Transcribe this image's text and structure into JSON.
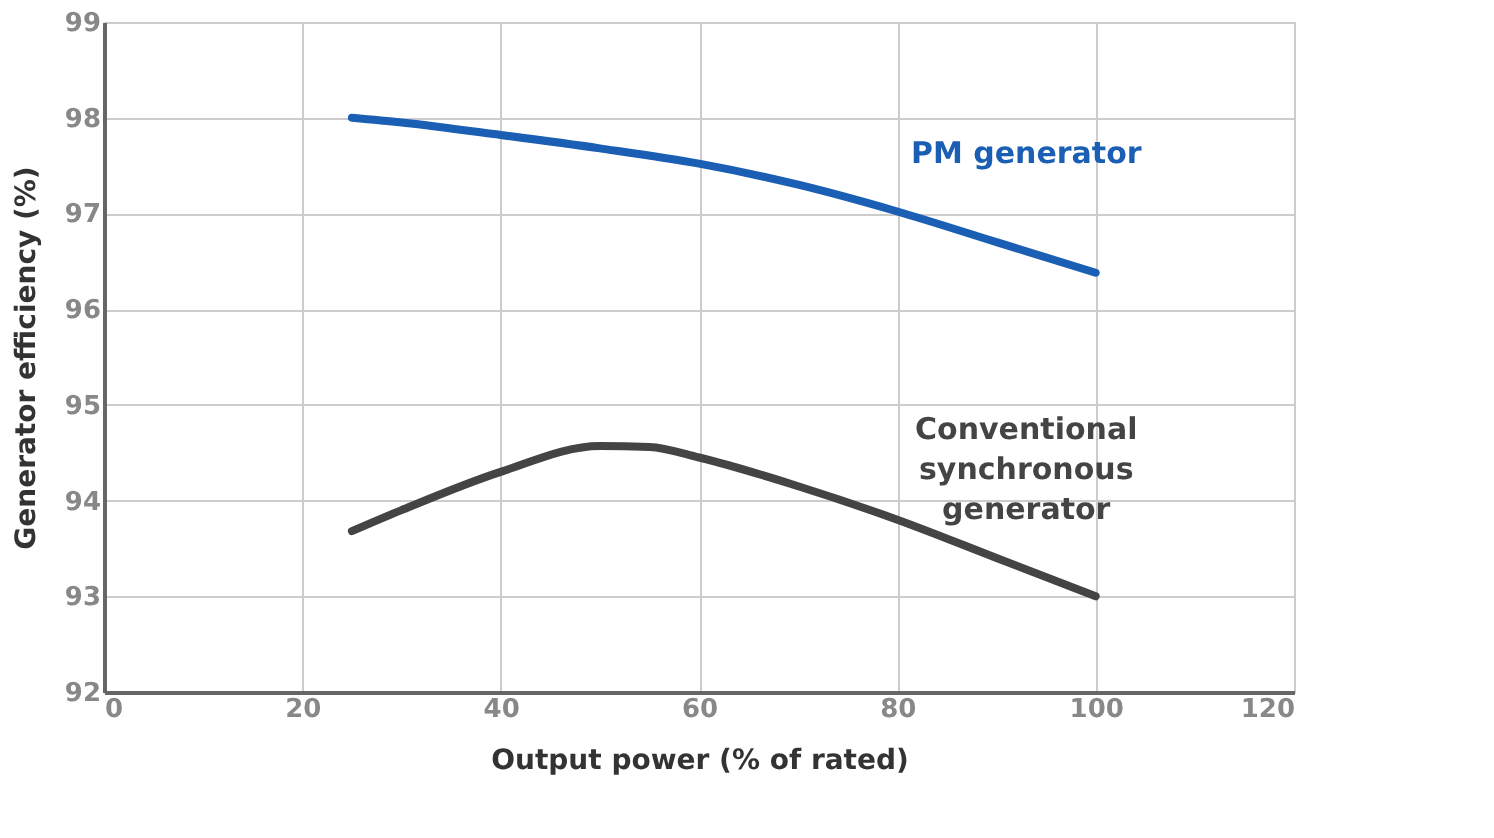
{
  "chart_data": {
    "type": "line",
    "xlabel": "Output power (% of rated)",
    "ylabel": "Generator efficiency (%)",
    "series": [
      {
        "name": "PM generator",
        "color": "#1a5fb4",
        "x": [
          25,
          30,
          40,
          50,
          60,
          70,
          80,
          90,
          100
        ],
        "values": [
          98.0,
          97.95,
          97.82,
          97.68,
          97.52,
          97.3,
          97.02,
          96.7,
          96.38
        ]
      },
      {
        "name": "Conventional synchronous generator",
        "color": "#444444",
        "x": [
          25,
          30,
          40,
          50,
          55,
          60,
          70,
          80,
          90,
          100
        ],
        "values": [
          93.68,
          93.9,
          94.3,
          94.57,
          94.56,
          94.45,
          94.15,
          93.8,
          93.4,
          93.0
        ]
      }
    ],
    "xlim": [
      0,
      120
    ],
    "xticks": [
      0,
      20,
      40,
      60,
      80,
      100,
      120
    ],
    "ylim": [
      92,
      99
    ],
    "yticks": [
      92,
      93,
      94,
      95,
      96,
      97,
      98,
      99
    ],
    "grid": true,
    "legend": false,
    "marker": "none",
    "line_style": "solid"
  }
}
